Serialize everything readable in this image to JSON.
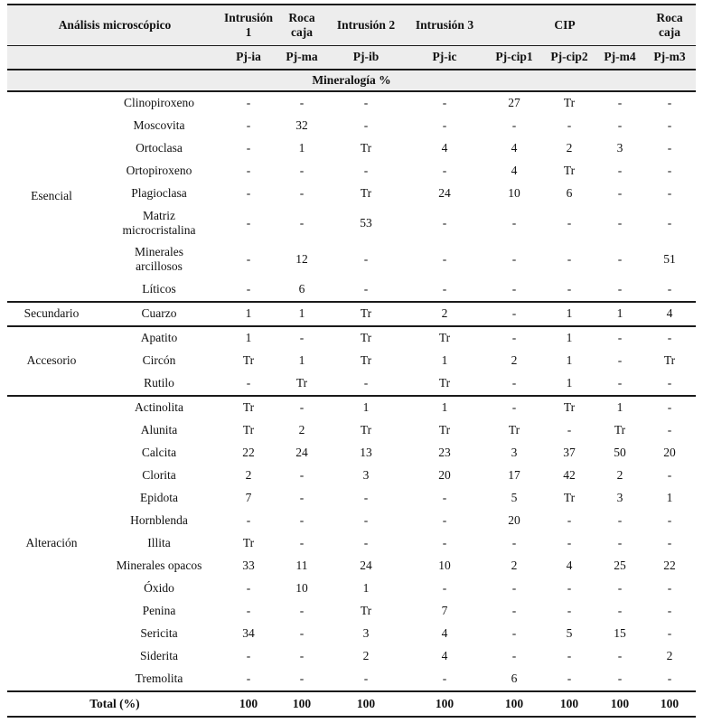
{
  "colors": {
    "header_bg": "#ededed",
    "rule": "#1a1a1a",
    "text": "#111111",
    "background": "#ffffff"
  },
  "header": {
    "title": "Análisis microscópico",
    "group_cols": [
      {
        "label": "Intrusión 1",
        "span": 1
      },
      {
        "label": "Roca caja",
        "span": 1
      },
      {
        "label": "Intrusión 2",
        "span": 1
      },
      {
        "label": "Intrusión 3",
        "span": 1
      },
      {
        "label": "CIP",
        "span": 3
      },
      {
        "label": "Roca caja",
        "span": 1
      }
    ],
    "sample_cols": [
      "Pj-ia",
      "Pj-ma",
      "Pj-ib",
      "Pj-ic",
      "Pj-cip1",
      "Pj-cip2",
      "Pj-m4",
      "Pj-m3"
    ],
    "section_title": "Mineralogía %"
  },
  "groups": [
    {
      "label": "Esencial",
      "rows": [
        {
          "mineral": "Clinopiroxeno",
          "values": [
            "-",
            "-",
            "-",
            "-",
            "27",
            "Tr",
            "-",
            "-"
          ]
        },
        {
          "mineral": "Moscovita",
          "values": [
            "-",
            "32",
            "-",
            "-",
            "-",
            "-",
            "-",
            "-"
          ]
        },
        {
          "mineral": "Ortoclasa",
          "values": [
            "-",
            "1",
            "Tr",
            "4",
            "4",
            "2",
            "3",
            "-"
          ]
        },
        {
          "mineral": "Ortopiroxeno",
          "values": [
            "-",
            "-",
            "-",
            "-",
            "4",
            "Tr",
            "-",
            "-"
          ]
        },
        {
          "mineral": "Plagioclasa",
          "values": [
            "-",
            "-",
            "Tr",
            "24",
            "10",
            "6",
            "-",
            "-"
          ]
        },
        {
          "mineral": "Matriz\nmicrocristalina",
          "values": [
            "-",
            "-",
            "53",
            "-",
            "-",
            "-",
            "-",
            "-"
          ]
        },
        {
          "mineral": "Minerales\narcillosos",
          "values": [
            "-",
            "12",
            "-",
            "-",
            "-",
            "-",
            "-",
            "51"
          ]
        },
        {
          "mineral": "Líticos",
          "values": [
            "-",
            "6",
            "-",
            "-",
            "-",
            "-",
            "-",
            "-"
          ]
        }
      ]
    },
    {
      "label": "Secundario",
      "rows": [
        {
          "mineral": "Cuarzo",
          "values": [
            "1",
            "1",
            "Tr",
            "2",
            "-",
            "1",
            "1",
            "4"
          ]
        }
      ]
    },
    {
      "label": "Accesorio",
      "rows": [
        {
          "mineral": "Apatito",
          "values": [
            "1",
            "-",
            "Tr",
            "Tr",
            "-",
            "1",
            "-",
            "-"
          ]
        },
        {
          "mineral": "Circón",
          "values": [
            "Tr",
            "1",
            "Tr",
            "1",
            "2",
            "1",
            "-",
            "Tr"
          ]
        },
        {
          "mineral": "Rutilo",
          "values": [
            "-",
            "Tr",
            "-",
            "Tr",
            "-",
            "1",
            "-",
            "-"
          ]
        }
      ]
    },
    {
      "label": "Alteración",
      "rows": [
        {
          "mineral": "Actinolita",
          "values": [
            "Tr",
            "-",
            "1",
            "1",
            "-",
            "Tr",
            "1",
            "-"
          ]
        },
        {
          "mineral": "Alunita",
          "values": [
            "Tr",
            "2",
            "Tr",
            "Tr",
            "Tr",
            "-",
            "Tr",
            "-"
          ]
        },
        {
          "mineral": "Calcita",
          "values": [
            "22",
            "24",
            "13",
            "23",
            "3",
            "37",
            "50",
            "20"
          ]
        },
        {
          "mineral": "Clorita",
          "values": [
            "2",
            "-",
            "3",
            "20",
            "17",
            "42",
            "2",
            "-"
          ]
        },
        {
          "mineral": "Epidota",
          "values": [
            "7",
            "-",
            "-",
            "-",
            "5",
            "Tr",
            "3",
            "1"
          ]
        },
        {
          "mineral": "Hornblenda",
          "values": [
            "-",
            "-",
            "-",
            "-",
            "20",
            "-",
            "-",
            "-"
          ]
        },
        {
          "mineral": "Illita",
          "values": [
            "Tr",
            "-",
            "-",
            "-",
            "-",
            "-",
            "-",
            "-"
          ]
        },
        {
          "mineral": "Minerales opacos",
          "values": [
            "33",
            "11",
            "24",
            "10",
            "2",
            "4",
            "25",
            "22"
          ]
        },
        {
          "mineral": "Óxido",
          "values": [
            "-",
            "10",
            "1",
            "-",
            "-",
            "-",
            "-",
            "-"
          ]
        },
        {
          "mineral": "Penina",
          "values": [
            "-",
            "-",
            "Tr",
            "7",
            "-",
            "-",
            "-",
            "-"
          ]
        },
        {
          "mineral": "Sericita",
          "values": [
            "34",
            "-",
            "3",
            "4",
            "-",
            "5",
            "15",
            "-"
          ]
        },
        {
          "mineral": "Siderita",
          "values": [
            "-",
            "-",
            "2",
            "4",
            "-",
            "-",
            "-",
            "2"
          ]
        },
        {
          "mineral": "Tremolita",
          "values": [
            "-",
            "-",
            "-",
            "-",
            "6",
            "-",
            "-",
            "-"
          ]
        }
      ]
    }
  ],
  "total": {
    "label": "Total (%)",
    "values": [
      "100",
      "100",
      "100",
      "100",
      "100",
      "100",
      "100",
      "100"
    ]
  }
}
